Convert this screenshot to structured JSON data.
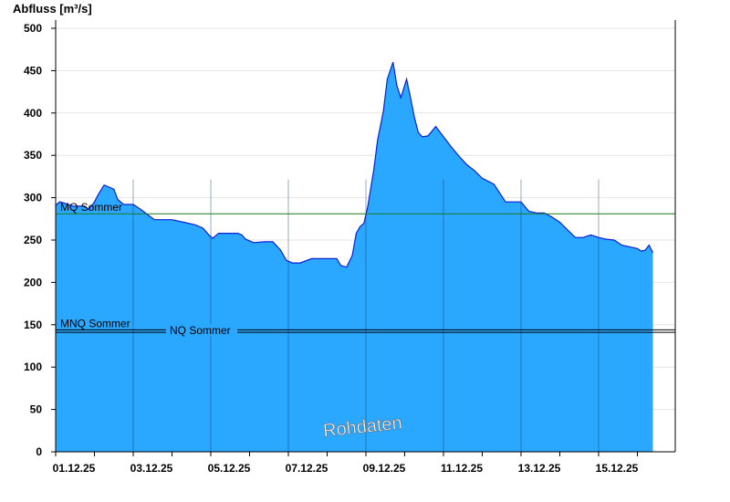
{
  "chart_data": {
    "type": "area",
    "ylabel": "Abfluss [m³/s]",
    "ylim": [
      0,
      500
    ],
    "yticks": [
      0,
      50,
      100,
      150,
      200,
      250,
      300,
      350,
      400,
      450,
      500
    ],
    "xlim": [
      0,
      16
    ],
    "xticks": [
      {
        "x": 0,
        "label": "01.12.25"
      },
      {
        "x": 2,
        "label": "03.12.25"
      },
      {
        "x": 4,
        "label": "05.12.25"
      },
      {
        "x": 6,
        "label": "07.12.25"
      },
      {
        "x": 8,
        "label": "09.12.25"
      },
      {
        "x": 10,
        "label": "11.12.25"
      },
      {
        "x": 12,
        "label": "13.12.25"
      },
      {
        "x": 14,
        "label": "15.12.25"
      }
    ],
    "fill_color": "#2aa7ff",
    "line_color": "#0b1fd6",
    "series": [
      {
        "x": [
          0,
          0.1,
          0.2,
          0.45,
          0.5,
          0.75,
          0.85,
          1.0,
          1.1,
          1.25,
          1.35,
          1.5,
          1.6,
          1.75,
          1.85,
          2.0,
          2.2,
          2.4,
          2.55,
          2.7,
          3.0,
          3.3,
          3.6,
          3.8,
          3.95,
          4.05,
          4.2,
          4.7,
          4.8,
          4.9,
          5.1,
          5.4,
          5.6,
          5.8,
          5.95,
          6.1,
          6.3,
          6.6,
          6.8,
          6.95,
          7.05,
          7.15,
          7.25,
          7.35,
          7.5,
          7.65,
          7.75,
          7.85,
          7.95,
          8.05,
          8.12,
          8.2,
          8.3,
          8.45,
          8.55,
          8.7,
          8.8,
          8.9,
          9.05,
          9.15,
          9.25,
          9.35,
          9.45,
          9.6,
          9.8,
          10.0,
          10.2,
          10.4,
          10.6,
          10.8,
          11.0,
          11.3,
          11.6,
          11.9,
          12.0,
          12.2,
          12.4,
          12.6,
          12.8,
          13.0,
          13.2,
          13.4,
          13.6,
          13.8,
          14.0,
          14.2,
          14.4,
          14.6,
          14.8,
          15.0,
          15.1,
          15.2,
          15.3,
          15.4
        ],
        "values": [
          291,
          295,
          294,
          290,
          290,
          290,
          286,
          295,
          304,
          315,
          313,
          310,
          298,
          292,
          292,
          292,
          286,
          279,
          274,
          274,
          274,
          271,
          268,
          264,
          256,
          252,
          258,
          258,
          256,
          251,
          247,
          248,
          248,
          238,
          226,
          223,
          223,
          228,
          228,
          228,
          228,
          228,
          228,
          220,
          218,
          232,
          258,
          266,
          270,
          290,
          310,
          332,
          368,
          402,
          440,
          460,
          432,
          418,
          440,
          418,
          395,
          377,
          372,
          373,
          384,
          372,
          360,
          349,
          339,
          332,
          323,
          316,
          295,
          295,
          295,
          284,
          282,
          282,
          277,
          271,
          262,
          253,
          253,
          256,
          253,
          251,
          250,
          244,
          242,
          240,
          237,
          238,
          244,
          235
        ]
      }
    ],
    "reference_lines": [
      {
        "name": "MQ Sommer",
        "value": 281,
        "color": "#1a7a1a"
      },
      {
        "name": "MNQ Sommer",
        "value": 144,
        "color": "#000000"
      },
      {
        "name": "NQ Sommer",
        "value": 141,
        "color": "#000000"
      }
    ],
    "watermark": "Rohdaten"
  }
}
